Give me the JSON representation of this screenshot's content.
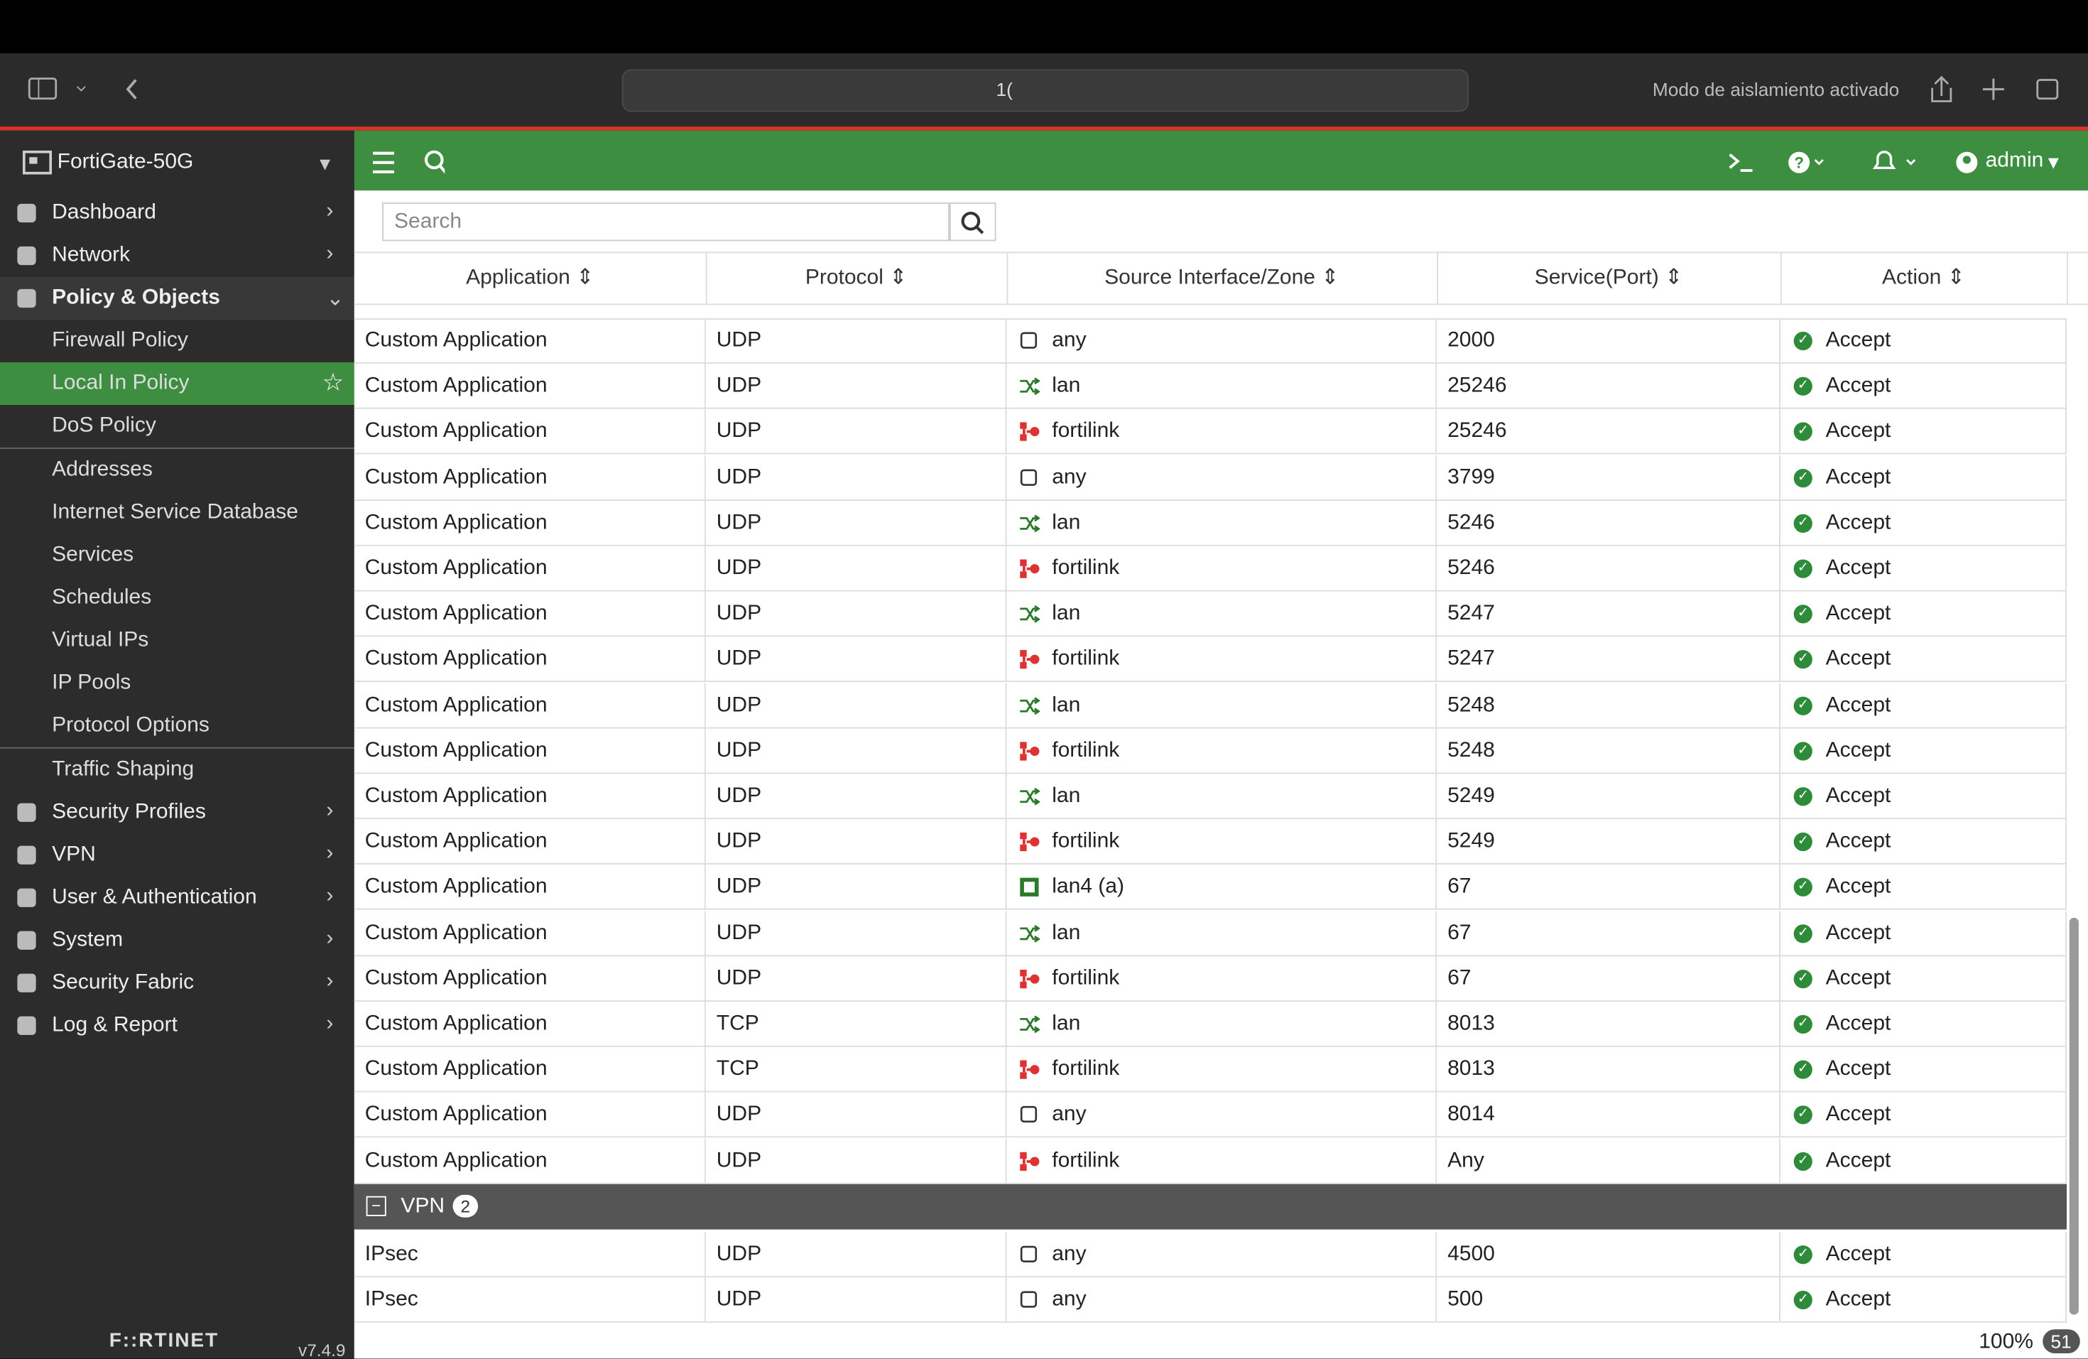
{
  "browser": {
    "url": "1(",
    "isolation": "Modo de aislamiento activado"
  },
  "sidebar": {
    "device": "FortiGate-50G",
    "nav": [
      {
        "label": "Dashboard"
      },
      {
        "label": "Network"
      },
      {
        "label": "Policy & Objects",
        "expanded": true,
        "groups": [
          [
            {
              "label": "Firewall Policy"
            },
            {
              "label": "Local In Policy",
              "active": true
            },
            {
              "label": "DoS Policy"
            }
          ],
          [
            {
              "label": "Addresses"
            },
            {
              "label": "Internet Service Database"
            },
            {
              "label": "Services"
            },
            {
              "label": "Schedules"
            },
            {
              "label": "Virtual IPs"
            },
            {
              "label": "IP Pools"
            },
            {
              "label": "Protocol Options"
            }
          ],
          [
            {
              "label": "Traffic Shaping"
            }
          ]
        ]
      },
      {
        "label": "Security Profiles"
      },
      {
        "label": "VPN"
      },
      {
        "label": "User & Authentication"
      },
      {
        "label": "System"
      },
      {
        "label": "Security Fabric"
      },
      {
        "label": "Log & Report"
      }
    ],
    "brand": "F::RTINET",
    "version": "v7.4.9"
  },
  "topbar": {
    "user": "admin"
  },
  "search": {
    "placeholder": "Search"
  },
  "table": {
    "columns": [
      "Application",
      "Protocol",
      "Source Interface/Zone",
      "Service(Port)",
      "Action"
    ],
    "rows": [
      [
        "Custom Application",
        "UDP",
        "any",
        "2000",
        "Accept"
      ],
      [
        "Custom Application",
        "UDP",
        "lan",
        "25246",
        "Accept"
      ],
      [
        "Custom Application",
        "UDP",
        "fortilink",
        "25246",
        "Accept"
      ],
      [
        "Custom Application",
        "UDP",
        "any",
        "3799",
        "Accept"
      ],
      [
        "Custom Application",
        "UDP",
        "lan",
        "5246",
        "Accept"
      ],
      [
        "Custom Application",
        "UDP",
        "fortilink",
        "5246",
        "Accept"
      ],
      [
        "Custom Application",
        "UDP",
        "lan",
        "5247",
        "Accept"
      ],
      [
        "Custom Application",
        "UDP",
        "fortilink",
        "5247",
        "Accept"
      ],
      [
        "Custom Application",
        "UDP",
        "lan",
        "5248",
        "Accept"
      ],
      [
        "Custom Application",
        "UDP",
        "fortilink",
        "5248",
        "Accept"
      ],
      [
        "Custom Application",
        "UDP",
        "lan",
        "5249",
        "Accept"
      ],
      [
        "Custom Application",
        "UDP",
        "fortilink",
        "5249",
        "Accept"
      ],
      [
        "Custom Application",
        "UDP",
        "lan4 (a)",
        "67",
        "Accept"
      ],
      [
        "Custom Application",
        "UDP",
        "lan",
        "67",
        "Accept"
      ],
      [
        "Custom Application",
        "UDP",
        "fortilink",
        "67",
        "Accept"
      ],
      [
        "Custom Application",
        "TCP",
        "lan",
        "8013",
        "Accept"
      ],
      [
        "Custom Application",
        "TCP",
        "fortilink",
        "8013",
        "Accept"
      ],
      [
        "Custom Application",
        "UDP",
        "any",
        "8014",
        "Accept"
      ],
      [
        "Custom Application",
        "UDP",
        "fortilink",
        "Any",
        "Accept"
      ]
    ],
    "group": {
      "name": "VPN",
      "count": "2",
      "rows": [
        [
          "IPsec",
          "UDP",
          "any",
          "4500",
          "Accept"
        ],
        [
          "IPsec",
          "UDP",
          "any",
          "500",
          "Accept"
        ]
      ]
    }
  },
  "status": {
    "zoom": "100%",
    "badge": "51"
  }
}
